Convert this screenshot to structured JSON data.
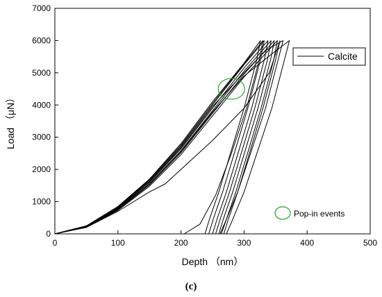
{
  "chart_data": {
    "type": "line",
    "xlabel": "Depth （nm）",
    "ylabel": "Load （μN）",
    "xlim": [
      0,
      500
    ],
    "ylim": [
      0,
      7000
    ],
    "xticks": [
      0,
      100,
      200,
      300,
      400,
      500
    ],
    "yticks": [
      0,
      1000,
      2000,
      3000,
      4000,
      5000,
      6000,
      7000
    ],
    "grid": false,
    "legend": {
      "position": "top-right",
      "label": "Calcite",
      "color": "#000000"
    },
    "annotation": {
      "label": "Pop-in events",
      "color": "#2e9e2e"
    },
    "popin_marker": {
      "x": 280,
      "y": 4500,
      "color": "#2e9e2e"
    },
    "series": [
      {
        "loading_x": [
          0,
          50,
          100,
          150,
          200,
          250,
          300,
          326
        ],
        "loading_y": [
          0,
          250,
          850,
          1700,
          2800,
          4100,
          5300,
          6000
        ],
        "unloading_x": [
          326,
          320,
          300,
          280,
          260,
          245,
          238
        ],
        "unloading_y": [
          6000,
          5400,
          3900,
          2600,
          1300,
          450,
          0
        ]
      },
      {
        "loading_x": [
          0,
          50,
          100,
          150,
          200,
          250,
          300,
          332
        ],
        "loading_y": [
          0,
          240,
          820,
          1650,
          2720,
          4000,
          5250,
          6000
        ],
        "unloading_x": [
          332,
          326,
          306,
          286,
          266,
          251,
          244
        ],
        "unloading_y": [
          6000,
          5400,
          3900,
          2600,
          1300,
          450,
          0
        ]
      },
      {
        "loading_x": [
          0,
          50,
          100,
          150,
          200,
          250,
          300,
          338
        ],
        "loading_y": [
          0,
          230,
          790,
          1600,
          2640,
          3900,
          5150,
          6000
        ],
        "unloading_x": [
          338,
          332,
          312,
          292,
          272,
          257,
          250
        ],
        "unloading_y": [
          6000,
          5400,
          3900,
          2600,
          1300,
          450,
          0
        ]
      },
      {
        "loading_x": [
          0,
          50,
          100,
          150,
          200,
          250,
          300,
          343
        ],
        "loading_y": [
          0,
          225,
          770,
          1560,
          2580,
          3820,
          5050,
          6000
        ],
        "unloading_x": [
          343,
          337,
          317,
          297,
          277,
          262,
          255
        ],
        "unloading_y": [
          6000,
          5400,
          3900,
          2600,
          1300,
          450,
          0
        ]
      },
      {
        "loading_x": [
          0,
          50,
          100,
          150,
          200,
          250,
          300,
          348
        ],
        "loading_y": [
          0,
          220,
          750,
          1520,
          2520,
          3740,
          4960,
          6000
        ],
        "unloading_x": [
          348,
          342,
          322,
          302,
          282,
          267,
          260
        ],
        "unloading_y": [
          6000,
          5400,
          3900,
          2600,
          1300,
          450,
          0
        ]
      },
      {
        "loading_x": [
          0,
          50,
          100,
          150,
          200,
          250,
          300,
          353
        ],
        "loading_y": [
          0,
          215,
          730,
          1480,
          2460,
          3660,
          4870,
          6000
        ],
        "unloading_x": [
          353,
          347,
          327,
          307,
          287,
          272,
          264
        ],
        "unloading_y": [
          6000,
          5400,
          3900,
          2600,
          1300,
          450,
          0
        ]
      },
      {
        "loading_x": [
          0,
          50,
          100,
          150,
          175,
          200,
          250,
          300,
          340,
          357
        ],
        "loading_y": [
          0,
          200,
          700,
          1300,
          1550,
          2000,
          2900,
          3900,
          5000,
          6000
        ],
        "unloading_x": [
          357,
          350,
          330,
          310,
          290,
          275,
          268
        ],
        "unloading_y": [
          6000,
          5400,
          3900,
          2600,
          1300,
          450,
          0
        ]
      },
      {
        "loading_x": [
          0,
          50,
          100,
          150,
          200,
          250,
          300,
          335,
          362
        ],
        "loading_y": [
          0,
          235,
          800,
          1620,
          2680,
          3950,
          5000,
          5700,
          6000
        ],
        "unloading_x": [
          362,
          354,
          334,
          312,
          290,
          272,
          262
        ],
        "unloading_y": [
          6000,
          5400,
          3900,
          2600,
          1300,
          450,
          0
        ]
      },
      {
        "loading_x": [
          0,
          50,
          100,
          150,
          200,
          250,
          300,
          345,
          372
        ],
        "loading_y": [
          0,
          220,
          760,
          1550,
          2560,
          3780,
          4900,
          5600,
          6000
        ],
        "unloading_x": [
          372,
          364,
          344,
          322,
          300,
          282,
          272
        ],
        "unloading_y": [
          6000,
          5400,
          3900,
          2600,
          1300,
          450,
          0
        ]
      },
      {
        "loading_x": [
          0,
          50,
          100,
          150,
          200,
          250,
          300,
          330
        ],
        "loading_y": [
          0,
          245,
          835,
          1680,
          2760,
          4050,
          5280,
          6000
        ],
        "unloading_x": [
          330,
          324,
          304,
          280,
          255,
          230,
          205
        ],
        "unloading_y": [
          6000,
          5400,
          3900,
          2500,
          1200,
          300,
          0
        ]
      }
    ]
  },
  "caption": {
    "label": "(c)"
  }
}
